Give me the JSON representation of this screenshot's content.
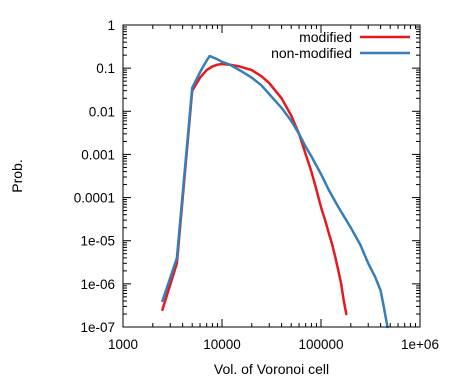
{
  "chart_data": {
    "type": "line",
    "title": "",
    "xlabel": "Vol. of Voronoi cell",
    "ylabel": "Prob.",
    "xscale": "log",
    "yscale": "log",
    "xlim": [
      1000,
      1000000
    ],
    "ylim": [
      1e-07,
      1
    ],
    "x_ticks": [
      {
        "value": 1000,
        "label": "1000"
      },
      {
        "value": 10000,
        "label": "10000"
      },
      {
        "value": 100000,
        "label": "100000"
      },
      {
        "value": 1000000,
        "label": "1e+06"
      }
    ],
    "y_ticks": [
      {
        "value": 1,
        "label": "1"
      },
      {
        "value": 0.1,
        "label": "0.1"
      },
      {
        "value": 0.01,
        "label": "0.01"
      },
      {
        "value": 0.001,
        "label": "0.001"
      },
      {
        "value": 0.0001,
        "label": "0.0001"
      },
      {
        "value": 1e-05,
        "label": "1e-05"
      },
      {
        "value": 1e-06,
        "label": "1e-06"
      },
      {
        "value": 1e-07,
        "label": "1e-07"
      }
    ],
    "grid": false,
    "legend_position": "top-right",
    "series": [
      {
        "name": "modified",
        "color": "#e41a1c",
        "x": [
          2500,
          3500,
          5000,
          6000,
          7000,
          8000,
          9000,
          10000,
          12000,
          15000,
          20000,
          25000,
          30000,
          40000,
          50000,
          60000,
          70000,
          80000,
          90000,
          100000,
          110000,
          120000,
          130000,
          140000,
          150000,
          160000,
          170000,
          180000
        ],
        "y": [
          2.5e-07,
          3e-06,
          0.03,
          0.06,
          0.09,
          0.11,
          0.12,
          0.125,
          0.12,
          0.11,
          0.09,
          0.065,
          0.045,
          0.02,
          0.008,
          0.003,
          0.001,
          0.0004,
          0.00015,
          6e-05,
          3e-05,
          1.5e-05,
          8e-06,
          4e-06,
          2e-06,
          1e-06,
          4e-07,
          2e-07
        ]
      },
      {
        "name": "non-modified",
        "color": "#377eb8",
        "x": [
          2500,
          3500,
          5000,
          6000,
          7000,
          7500,
          8000,
          9000,
          10000,
          12000,
          15000,
          20000,
          25000,
          30000,
          40000,
          50000,
          60000,
          70000,
          80000,
          100000,
          120000,
          150000,
          200000,
          250000,
          300000,
          350000,
          400000,
          430000,
          470000
        ],
        "y": [
          4e-07,
          4e-06,
          0.035,
          0.08,
          0.15,
          0.19,
          0.18,
          0.16,
          0.14,
          0.12,
          0.09,
          0.06,
          0.04,
          0.025,
          0.012,
          0.006,
          0.003,
          0.0015,
          0.0009,
          0.00035,
          0.00015,
          6e-05,
          2e-05,
          8e-06,
          3e-06,
          1.5e-06,
          7e-07,
          3e-07,
          1e-07
        ]
      }
    ]
  }
}
